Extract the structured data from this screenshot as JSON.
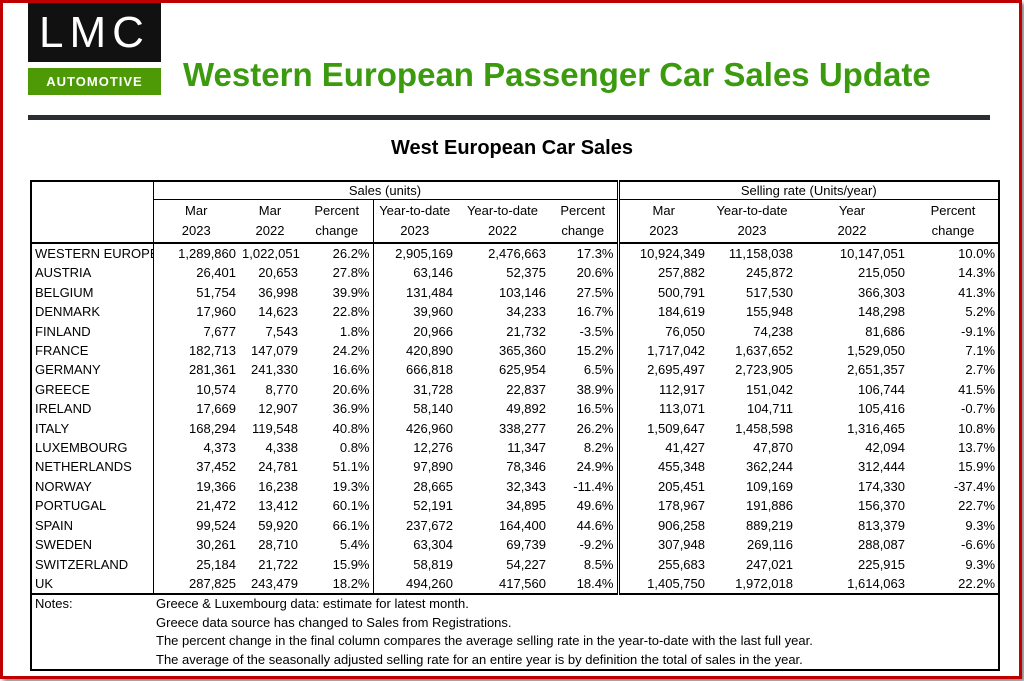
{
  "logo": {
    "top_text": "LMC",
    "bottom_text": "AUTOMOTIVE",
    "colors": {
      "black": "#111111",
      "green": "#4e9a06"
    }
  },
  "title": "Western European Passenger Car Sales Update",
  "title_color": "#3b9a0e",
  "frame_color": "#c00000",
  "subtitle": "West European Car Sales",
  "table": {
    "groups": [
      "Sales (units)",
      "Selling rate (Units/year)"
    ],
    "columns": [
      [
        "Mar",
        "2023"
      ],
      [
        "Mar",
        "2022"
      ],
      [
        "Percent",
        "change"
      ],
      [
        "Year-to-date",
        "2023"
      ],
      [
        "Year-to-date",
        "2022"
      ],
      [
        "Percent",
        "change"
      ],
      [
        "Mar",
        "2023"
      ],
      [
        "Year-to-date",
        "2023"
      ],
      [
        "Year",
        "2022"
      ],
      [
        "Percent",
        "change"
      ]
    ],
    "rows": [
      [
        "WESTERN EUROPE",
        "1,289,860",
        "1,022,051",
        "26.2%",
        "2,905,169",
        "2,476,663",
        "17.3%",
        "10,924,349",
        "11,158,038",
        "10,147,051",
        "10.0%"
      ],
      [
        "AUSTRIA",
        "26,401",
        "20,653",
        "27.8%",
        "63,146",
        "52,375",
        "20.6%",
        "257,882",
        "245,872",
        "215,050",
        "14.3%"
      ],
      [
        "BELGIUM",
        "51,754",
        "36,998",
        "39.9%",
        "131,484",
        "103,146",
        "27.5%",
        "500,791",
        "517,530",
        "366,303",
        "41.3%"
      ],
      [
        "DENMARK",
        "17,960",
        "14,623",
        "22.8%",
        "39,960",
        "34,233",
        "16.7%",
        "184,619",
        "155,948",
        "148,298",
        "5.2%"
      ],
      [
        "FINLAND",
        "7,677",
        "7,543",
        "1.8%",
        "20,966",
        "21,732",
        "-3.5%",
        "76,050",
        "74,238",
        "81,686",
        "-9.1%"
      ],
      [
        "FRANCE",
        "182,713",
        "147,079",
        "24.2%",
        "420,890",
        "365,360",
        "15.2%",
        "1,717,042",
        "1,637,652",
        "1,529,050",
        "7.1%"
      ],
      [
        "GERMANY",
        "281,361",
        "241,330",
        "16.6%",
        "666,818",
        "625,954",
        "6.5%",
        "2,695,497",
        "2,723,905",
        "2,651,357",
        "2.7%"
      ],
      [
        "GREECE",
        "10,574",
        "8,770",
        "20.6%",
        "31,728",
        "22,837",
        "38.9%",
        "112,917",
        "151,042",
        "106,744",
        "41.5%"
      ],
      [
        "IRELAND",
        "17,669",
        "12,907",
        "36.9%",
        "58,140",
        "49,892",
        "16.5%",
        "113,071",
        "104,711",
        "105,416",
        "-0.7%"
      ],
      [
        "ITALY",
        "168,294",
        "119,548",
        "40.8%",
        "426,960",
        "338,277",
        "26.2%",
        "1,509,647",
        "1,458,598",
        "1,316,465",
        "10.8%"
      ],
      [
        "LUXEMBOURG",
        "4,373",
        "4,338",
        "0.8%",
        "12,276",
        "11,347",
        "8.2%",
        "41,427",
        "47,870",
        "42,094",
        "13.7%"
      ],
      [
        "NETHERLANDS",
        "37,452",
        "24,781",
        "51.1%",
        "97,890",
        "78,346",
        "24.9%",
        "455,348",
        "362,244",
        "312,444",
        "15.9%"
      ],
      [
        "NORWAY",
        "19,366",
        "16,238",
        "19.3%",
        "28,665",
        "32,343",
        "-11.4%",
        "205,451",
        "109,169",
        "174,330",
        "-37.4%"
      ],
      [
        "PORTUGAL",
        "21,472",
        "13,412",
        "60.1%",
        "52,191",
        "34,895",
        "49.6%",
        "178,967",
        "191,886",
        "156,370",
        "22.7%"
      ],
      [
        "SPAIN",
        "99,524",
        "59,920",
        "66.1%",
        "237,672",
        "164,400",
        "44.6%",
        "906,258",
        "889,219",
        "813,379",
        "9.3%"
      ],
      [
        "SWEDEN",
        "30,261",
        "28,710",
        "5.4%",
        "63,304",
        "69,739",
        "-9.2%",
        "307,948",
        "269,116",
        "288,087",
        "-6.6%"
      ],
      [
        "SWITZERLAND",
        "25,184",
        "21,722",
        "15.9%",
        "58,819",
        "54,227",
        "8.5%",
        "255,683",
        "247,021",
        "225,915",
        "9.3%"
      ],
      [
        "UK",
        "287,825",
        "243,479",
        "18.2%",
        "494,260",
        "417,560",
        "18.4%",
        "1,405,750",
        "1,972,018",
        "1,614,063",
        "22.2%"
      ]
    ],
    "notes_label": "Notes:",
    "notes": [
      "Greece & Luxembourg data: estimate for latest month.",
      "Greece data source has changed to Sales from Registrations.",
      "The percent change in the final column compares the average selling rate in the year-to-date with the last full year.",
      "The average of the seasonally adjusted selling rate for an entire year is by definition the total of sales in the year."
    ]
  }
}
